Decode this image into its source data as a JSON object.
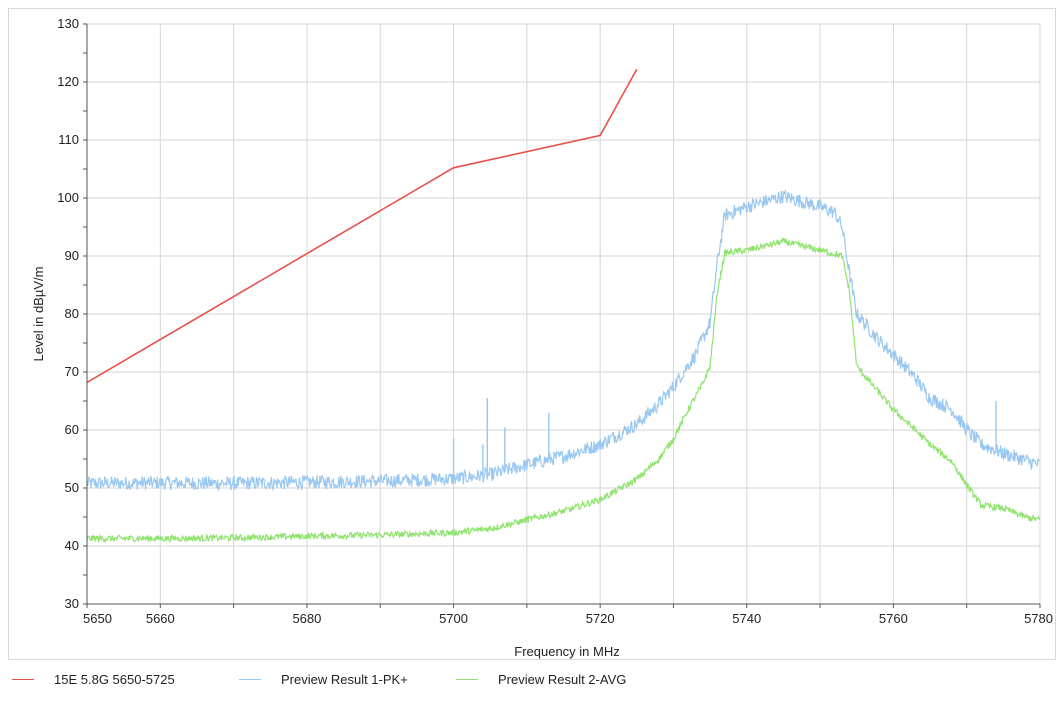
{
  "chart_data": {
    "type": "line",
    "xlabel": "Frequency in MHz",
    "ylabel": "Level in dBµV/m",
    "xlim": [
      5650,
      5780
    ],
    "ylim": [
      30,
      130
    ],
    "x_ticks": [
      "5650",
      "5660",
      "5680",
      "5700",
      "5720",
      "5740",
      "5760",
      "5780"
    ],
    "y_ticks": [
      "30",
      "40",
      "50",
      "60",
      "70",
      "80",
      "90",
      "100",
      "110",
      "120",
      "130"
    ],
    "grid": true,
    "legend_position": "bottom",
    "series": [
      {
        "name": "15E 5.8G 5650-5725",
        "color": "#e8514b",
        "points": [
          [
            5650,
            68.2
          ],
          [
            5700,
            105.2
          ],
          [
            5720,
            110.8
          ],
          [
            5725,
            122.2
          ]
        ]
      },
      {
        "name": "Preview Result 1-PK+",
        "color": "#9ac8f0",
        "points": [
          [
            5650,
            50.8
          ],
          [
            5660,
            50.9
          ],
          [
            5670,
            50.8
          ],
          [
            5680,
            51.0
          ],
          [
            5690,
            51.2
          ],
          [
            5700,
            51.6
          ],
          [
            5705,
            52.3
          ],
          [
            5710,
            54.0
          ],
          [
            5715,
            55.5
          ],
          [
            5720,
            57.5
          ],
          [
            5725,
            61.0
          ],
          [
            5728,
            64.5
          ],
          [
            5730,
            67.5
          ],
          [
            5733,
            73.0
          ],
          [
            5735,
            78.5
          ],
          [
            5736,
            89.0
          ],
          [
            5737,
            97.0
          ],
          [
            5740,
            98.5
          ],
          [
            5745,
            100.3
          ],
          [
            5750,
            98.5
          ],
          [
            5752,
            97.5
          ],
          [
            5753,
            95.0
          ],
          [
            5754,
            87.0
          ],
          [
            5755,
            80.0
          ],
          [
            5758,
            75.5
          ],
          [
            5760,
            73.0
          ],
          [
            5763,
            69.0
          ],
          [
            5765,
            65.5
          ],
          [
            5768,
            63.5
          ],
          [
            5770,
            60.0
          ],
          [
            5772,
            57.5
          ],
          [
            5775,
            56.0
          ],
          [
            5780,
            54.0
          ]
        ],
        "spikes": [
          [
            5700,
            58.5
          ],
          [
            5704,
            57.5
          ],
          [
            5704.6,
            65.5
          ],
          [
            5707,
            60.5
          ],
          [
            5713,
            63.0
          ],
          [
            5774,
            65.0
          ]
        ]
      },
      {
        "name": "Preview Result 2-AVG",
        "color": "#8fe36e",
        "points": [
          [
            5650,
            41.3
          ],
          [
            5660,
            41.3
          ],
          [
            5670,
            41.4
          ],
          [
            5680,
            41.7
          ],
          [
            5690,
            41.9
          ],
          [
            5700,
            42.3
          ],
          [
            5705,
            43.0
          ],
          [
            5710,
            44.5
          ],
          [
            5715,
            46.0
          ],
          [
            5720,
            48.0
          ],
          [
            5725,
            51.5
          ],
          [
            5728,
            55.0
          ],
          [
            5730,
            58.5
          ],
          [
            5732,
            63.5
          ],
          [
            5734,
            68.0
          ],
          [
            5735,
            71.0
          ],
          [
            5736,
            84.0
          ],
          [
            5737,
            90.5
          ],
          [
            5740,
            91.0
          ],
          [
            5745,
            92.5
          ],
          [
            5750,
            91.0
          ],
          [
            5753,
            90.0
          ],
          [
            5754,
            84.0
          ],
          [
            5755,
            71.0
          ],
          [
            5758,
            66.5
          ],
          [
            5760,
            63.5
          ],
          [
            5763,
            60.0
          ],
          [
            5765,
            57.5
          ],
          [
            5768,
            54.5
          ],
          [
            5770,
            50.5
          ],
          [
            5772,
            47.0
          ],
          [
            5775,
            46.5
          ],
          [
            5778,
            45.0
          ],
          [
            5780,
            44.5
          ]
        ]
      }
    ]
  }
}
